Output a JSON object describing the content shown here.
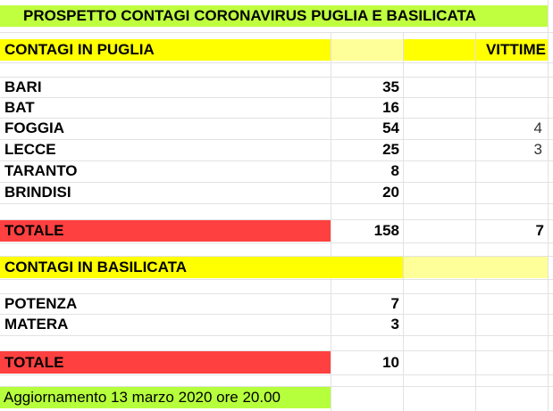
{
  "title": "PROSPETTO CONTAGI CORONAVIRUS PUGLIA E BASILICATA",
  "puglia": {
    "header": "CONTAGI IN PUGLIA",
    "victims_header": "VITTIME",
    "rows": [
      {
        "name": "BARI",
        "cases": "35",
        "victims": ""
      },
      {
        "name": "BAT",
        "cases": "16",
        "victims": ""
      },
      {
        "name": "FOGGIA",
        "cases": "54",
        "victims": "4"
      },
      {
        "name": "LECCE",
        "cases": "25",
        "victims": "3"
      },
      {
        "name": "TARANTO",
        "cases": "8",
        "victims": ""
      },
      {
        "name": "BRINDISI",
        "cases": "20",
        "victims": ""
      }
    ],
    "total_label": "TOTALE",
    "total_cases": "158",
    "total_victims": "7"
  },
  "basilicata": {
    "header": "CONTAGI IN BASILICATA",
    "rows": [
      {
        "name": "POTENZA",
        "cases": "7"
      },
      {
        "name": "MATERA",
        "cases": "3"
      }
    ],
    "total_label": "TOTALE",
    "total_cases": "10"
  },
  "footer": "Aggiornamento 13 marzo 2020 ore 20.00",
  "colors": {
    "title_bg": "#bfff3f",
    "header_bg": "#ffff00",
    "header_light_bg": "#ffff99",
    "total_bg": "#ff4040",
    "footer_bg": "#b6ff3c",
    "gridline": "#e2e2e2"
  }
}
